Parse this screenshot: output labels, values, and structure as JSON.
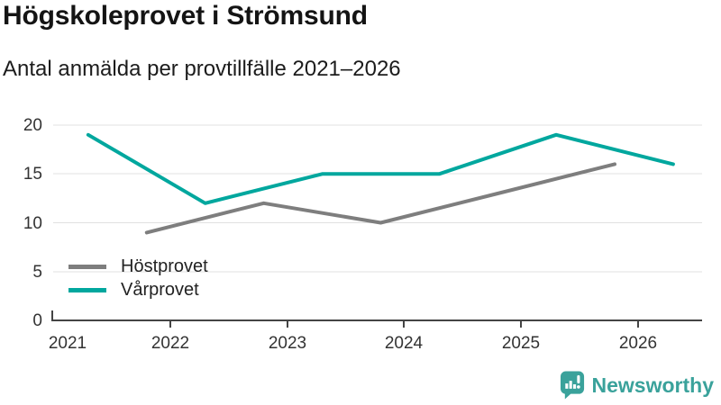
{
  "header": {
    "title": "Högskoleprovet i Strömsund",
    "subtitle": "Antal anmälda per provtillfälle 2021–2026"
  },
  "chart_data": {
    "type": "line",
    "title": "Högskoleprovet i Strömsund",
    "subtitle": "Antal anmälda per provtillfälle 2021–2026",
    "xlabel": "",
    "ylabel": "",
    "xlim": [
      2021,
      2026.55
    ],
    "ylim": [
      0,
      20
    ],
    "xticks": [
      "2021",
      "2022",
      "2023",
      "2024",
      "2025",
      "2026"
    ],
    "yticks": [
      "0",
      "5",
      "10",
      "15",
      "20"
    ],
    "grid": true,
    "legend_position": "inside bottom-left",
    "series": [
      {
        "name": "Höstprovet",
        "color": "#7e7e7e",
        "x": [
          2021.8,
          2022.8,
          2023.8,
          2024.8,
          2025.8
        ],
        "values": [
          9,
          12,
          10,
          13,
          16
        ]
      },
      {
        "name": "Vårprovet",
        "color": "#00a79e",
        "x": [
          2021.3,
          2022.3,
          2023.3,
          2024.3,
          2025.3,
          2026.3
        ],
        "values": [
          19,
          12,
          15,
          15,
          19,
          16
        ]
      }
    ]
  },
  "branding": {
    "name": "Newsworthy",
    "color": "#3aa29b",
    "icon": "bar-chart-speech-bubble-icon"
  }
}
